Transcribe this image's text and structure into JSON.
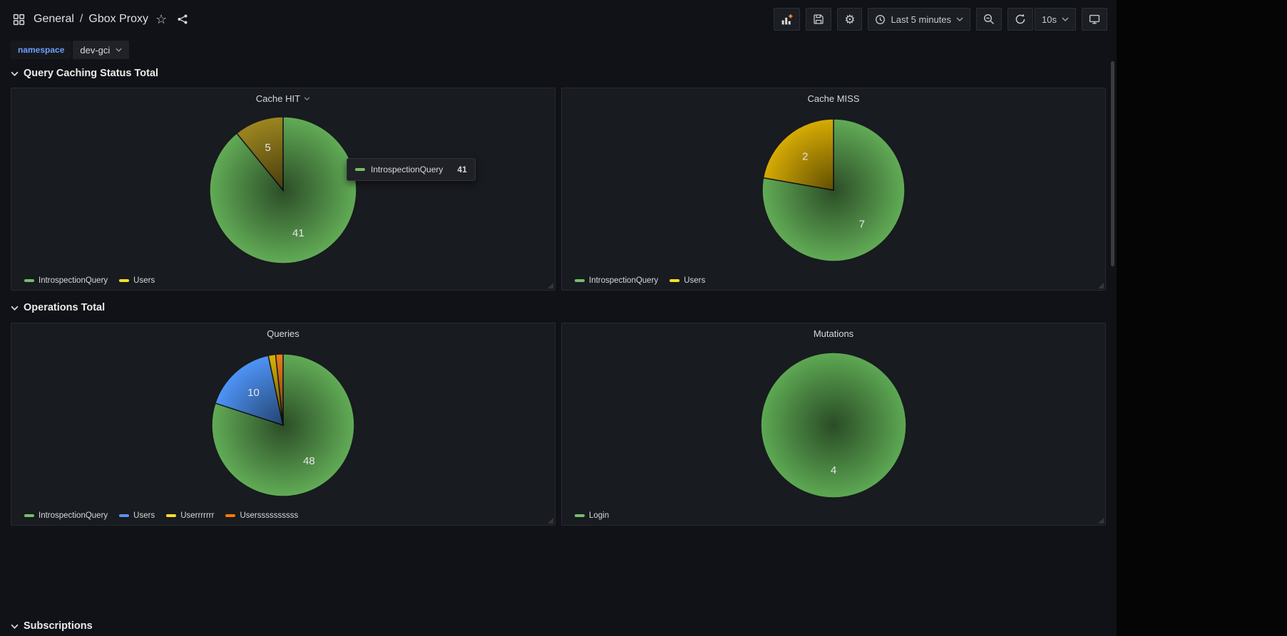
{
  "icons": {
    "star": "☆",
    "gear": "⚙"
  },
  "nav": {
    "breadcrumb": {
      "folder": "General",
      "separator": "/",
      "dashboard": "Gbox Proxy"
    },
    "toolbar": {
      "time_range_label": "Last 5 minutes",
      "refresh_interval": "10s"
    }
  },
  "variables": {
    "namespace": {
      "label": "namespace",
      "value": "dev-gci"
    }
  },
  "rows": [
    {
      "title": "Query Caching Status Total"
    },
    {
      "title": "Operations Total"
    },
    {
      "title": "Subscriptions"
    }
  ],
  "tooltip": {
    "series": "IntrospectionQuery",
    "value": 41,
    "color": "#73bf69"
  },
  "chart_data": [
    {
      "type": "pie",
      "title": "Cache HIT",
      "legend_position": "bottom",
      "series": [
        {
          "name": "IntrospectionQuery",
          "value": 41,
          "legend_color": "#73bf69",
          "slice_color": "#61ab56"
        },
        {
          "name": "Users",
          "value": 5,
          "legend_color": "#fade2a",
          "slice_color": "#9c851f"
        }
      ]
    },
    {
      "type": "pie",
      "title": "Cache MISS",
      "legend_position": "bottom",
      "series": [
        {
          "name": "IntrospectionQuery",
          "value": 7,
          "legend_color": "#73bf69",
          "slice_color": "#61ab56"
        },
        {
          "name": "Users",
          "value": 2,
          "legend_color": "#fade2a",
          "slice_color": "#d6ab04"
        }
      ]
    },
    {
      "type": "pie",
      "title": "Queries",
      "legend_position": "bottom",
      "series": [
        {
          "name": "IntrospectionQuery",
          "value": 48,
          "legend_color": "#73bf69",
          "slice_color": "#61ab56"
        },
        {
          "name": "Users",
          "value": 10,
          "legend_color": "#5794f2",
          "slice_color": "#4e93f5"
        },
        {
          "name": "Userrrrrrr",
          "value": 1,
          "legend_color": "#fade2a",
          "slice_color": "#d6b204"
        },
        {
          "name": "Userssssssssss",
          "value": 1,
          "legend_color": "#ff780a",
          "slice_color": "#ec7d18"
        }
      ]
    },
    {
      "type": "pie",
      "title": "Mutations",
      "legend_position": "bottom",
      "series": [
        {
          "name": "Login",
          "value": 4,
          "legend_color": "#73bf69",
          "slice_color": "#5da853"
        }
      ]
    }
  ]
}
